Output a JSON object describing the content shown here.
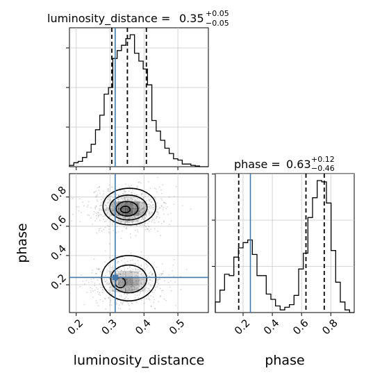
{
  "chart_data": {
    "type": "corner",
    "parameters": [
      {
        "name": "luminosity_distance",
        "title_prefix": "luminosity_distance = ",
        "median": "0.35",
        "plus": "+0.05",
        "minus": "−0.05",
        "truth": 0.315,
        "quantiles": [
          0.305,
          0.351,
          0.407
        ],
        "range": [
          0.18,
          0.59
        ],
        "ticks": [
          0.2,
          0.3,
          0.4,
          0.5
        ],
        "tick_labels": [
          "0.2",
          "0.3",
          "0.4",
          "0.5"
        ],
        "hist_edges": [
          0.18,
          0.1928,
          0.2056,
          0.2184,
          0.2312,
          0.244,
          0.2568,
          0.2696,
          0.2824,
          0.2952,
          0.308,
          0.3208,
          0.3336,
          0.3464,
          0.3592,
          0.372,
          0.3848,
          0.3976,
          0.4104,
          0.4232,
          0.436,
          0.4488,
          0.4616,
          0.4744,
          0.4872,
          0.5,
          0.5128,
          0.5256,
          0.5384,
          0.5512,
          0.564,
          0.5768,
          0.59
        ],
        "hist_counts": [
          0.01,
          0.03,
          0.04,
          0.07,
          0.11,
          0.17,
          0.28,
          0.39,
          0.55,
          0.6,
          0.82,
          0.88,
          0.92,
          0.97,
          1.0,
          0.86,
          0.8,
          0.74,
          0.62,
          0.35,
          0.27,
          0.2,
          0.14,
          0.1,
          0.06,
          0.05,
          0.02,
          0.02,
          0.01,
          0.005,
          0.0,
          0.0
        ]
      },
      {
        "name": "phase",
        "title_prefix": "phase = ",
        "median": "0.63",
        "plus": "+0.12",
        "minus": "−0.46",
        "truth": 0.25,
        "quantiles": [
          0.17,
          0.63,
          0.755
        ],
        "range": [
          0.01,
          0.96
        ],
        "ticks": [
          0.2,
          0.4,
          0.6,
          0.8
        ],
        "tick_labels": [
          "0.2",
          "0.4",
          "0.6",
          "0.8"
        ],
        "hist_edges": [
          0.01,
          0.0417,
          0.0733,
          0.105,
          0.1367,
          0.1683,
          0.2,
          0.2317,
          0.2633,
          0.295,
          0.3267,
          0.3583,
          0.39,
          0.4217,
          0.4533,
          0.485,
          0.5167,
          0.5483,
          0.58,
          0.6117,
          0.6433,
          0.675,
          0.7067,
          0.7383,
          0.77,
          0.8017,
          0.8333,
          0.865,
          0.8967,
          0.9283,
          0.96
        ],
        "hist_counts": [
          0.08,
          0.17,
          0.29,
          0.28,
          0.42,
          0.49,
          0.53,
          0.55,
          0.44,
          0.28,
          0.28,
          0.14,
          0.1,
          0.05,
          0.02,
          0.04,
          0.06,
          0.13,
          0.33,
          0.45,
          0.72,
          0.87,
          1.0,
          0.99,
          0.83,
          0.47,
          0.23,
          0.08,
          0.02,
          0.0
        ]
      }
    ],
    "xlabel_0": "luminosity_distance",
    "xlabel_1": "phase",
    "ylabel_row1": "phase",
    "truth_point": [
      0.315,
      0.25
    ],
    "density_blobs": [
      {
        "cx": 0.352,
        "cy": 0.717,
        "sx": 0.045,
        "sy": 0.06,
        "weight": 1.0
      },
      {
        "cx": 0.352,
        "cy": 0.215,
        "sx": 0.045,
        "sy": 0.065,
        "weight": 0.8
      }
    ],
    "contours": [
      {
        "cx": 0.357,
        "cy": 0.735,
        "rx": 0.078,
        "ry": 0.125
      },
      {
        "cx": 0.354,
        "cy": 0.728,
        "rx": 0.055,
        "ry": 0.085
      },
      {
        "cx": 0.35,
        "cy": 0.72,
        "rx": 0.032,
        "ry": 0.05
      },
      {
        "cx": 0.345,
        "cy": 0.715,
        "rx": 0.014,
        "ry": 0.022
      },
      {
        "cx": 0.355,
        "cy": 0.245,
        "rx": 0.08,
        "ry": 0.155
      },
      {
        "cx": 0.355,
        "cy": 0.24,
        "rx": 0.053,
        "ry": 0.095
      },
      {
        "cx": 0.33,
        "cy": 0.215,
        "rx": 0.015,
        "ry": 0.035
      }
    ],
    "grid": true,
    "color_line": "#000000",
    "color_truth": "#4477aa",
    "color_grid": "#c8c8c8"
  }
}
